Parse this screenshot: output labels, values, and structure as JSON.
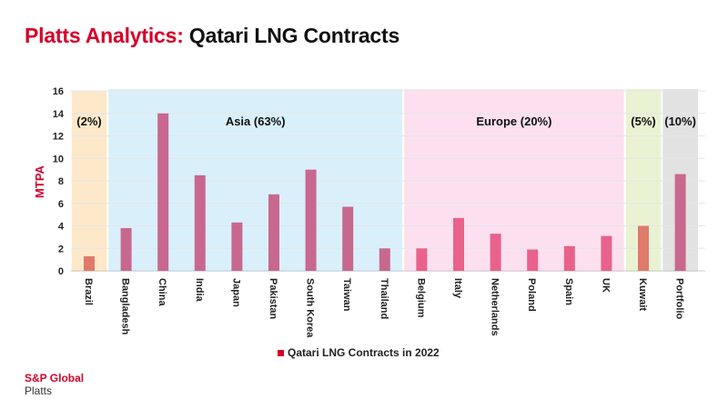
{
  "title": {
    "accent": "Platts Analytics:",
    "main": "Qatari LNG Contracts"
  },
  "logo": {
    "brand": "S&P Global",
    "sub": "Platts"
  },
  "colors": {
    "accent": "#d6002a",
    "bar": "#c8688e",
    "bar_europe": "#e8628d",
    "bar_highlight": "#e07a6a",
    "region_brazil": "#fde9c9",
    "region_asia": "#d9f0fb",
    "region_europe": "#fde0ef",
    "region_kuwait": "#e9f3d3",
    "region_portfolio": "#e2e2e2"
  },
  "chart_data": {
    "type": "bar",
    "ylabel": "MTPA",
    "ylim": [
      0,
      16
    ],
    "yticks": [
      0,
      2,
      4,
      6,
      8,
      10,
      12,
      14,
      16
    ],
    "categories": [
      "Brazil",
      "Bangladesh",
      "China",
      "India",
      "Japan",
      "Pakistan",
      "South Korea",
      "Taiwan",
      "Thailand",
      "Belgium",
      "Italy",
      "Netherlands",
      "Poland",
      "Spain",
      "UK",
      "Kuwait",
      "Portfolio"
    ],
    "series": [
      {
        "name": "Qatari LNG Contracts in 2022",
        "values": [
          1.3,
          3.8,
          14.0,
          8.5,
          4.3,
          6.8,
          9.0,
          5.7,
          2.0,
          2.0,
          4.7,
          3.3,
          1.9,
          2.2,
          3.1,
          4.0,
          8.6
        ]
      }
    ],
    "regions": [
      {
        "label": "(2%)",
        "from": 0,
        "to": 0,
        "color_key": "region_brazil"
      },
      {
        "label": "Asia (63%)",
        "from": 1,
        "to": 8,
        "color_key": "region_asia"
      },
      {
        "label": "Europe (20%)",
        "from": 9,
        "to": 14,
        "color_key": "region_europe"
      },
      {
        "label": "(5%)",
        "from": 15,
        "to": 15,
        "color_key": "region_kuwait"
      },
      {
        "label": "(10%)",
        "from": 16,
        "to": 16,
        "color_key": "region_portfolio"
      }
    ],
    "bar_color_keys": [
      "bar_highlight",
      "bar",
      "bar",
      "bar",
      "bar",
      "bar",
      "bar",
      "bar",
      "bar",
      "bar_europe",
      "bar_europe",
      "bar_europe",
      "bar_europe",
      "bar_europe",
      "bar_europe",
      "bar_highlight",
      "bar"
    ],
    "grid": true,
    "legend": "bottom"
  }
}
